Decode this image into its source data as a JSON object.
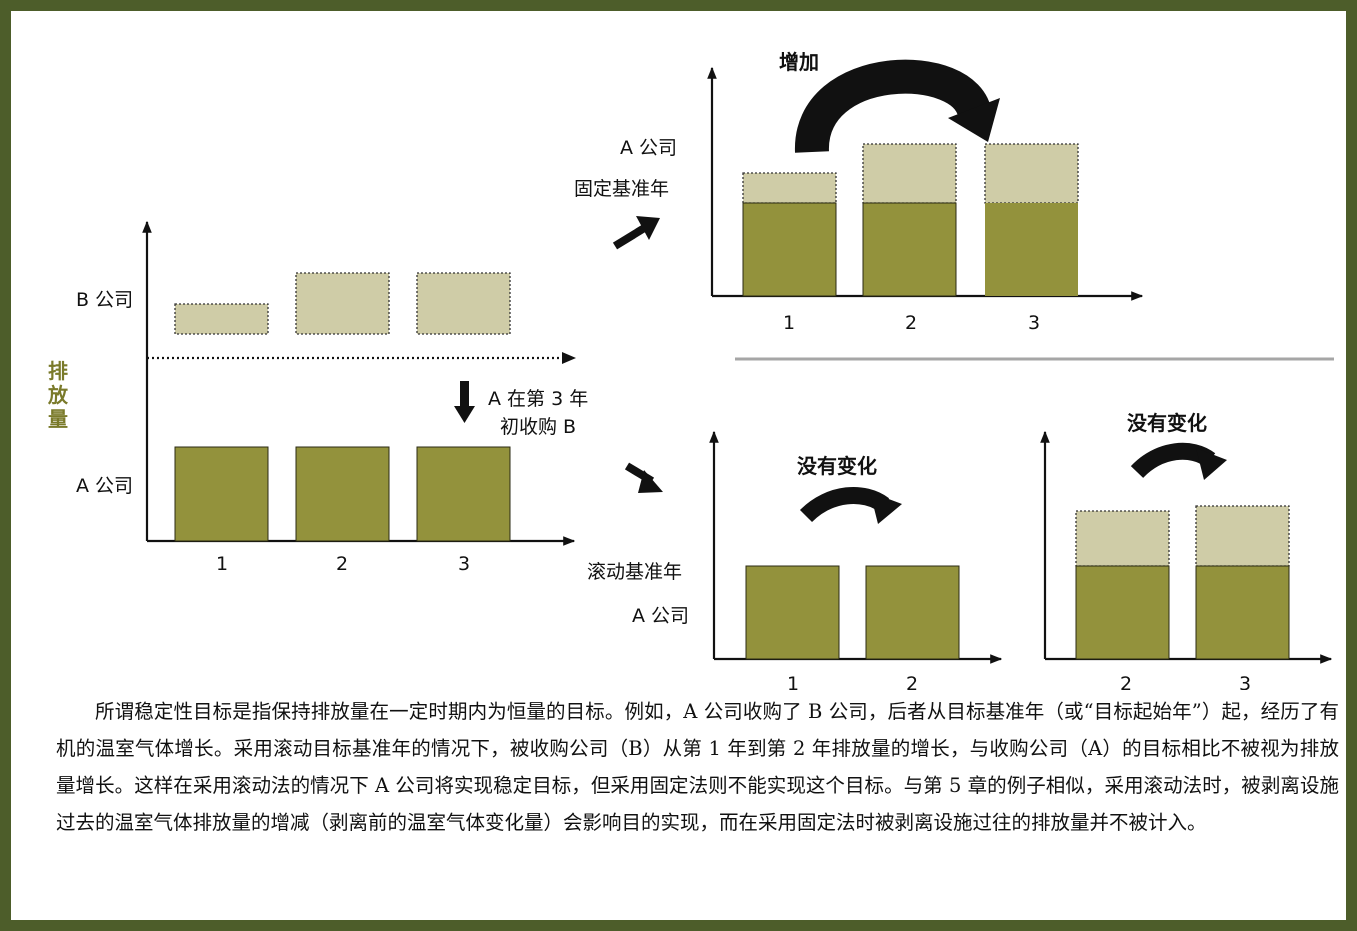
{
  "colors": {
    "border": "#4d5d2a",
    "company_a_bar": "#93923c",
    "company_b_bar": "#cfcca7",
    "axis": "#111111",
    "divider": "#a6a6a6",
    "y_axis_label": "#7a7a2a"
  },
  "left_panel": {
    "company_b_label": "B 公司",
    "company_a_label": "A 公司",
    "y_axis_label": "排放量",
    "acquisition_note_line1": "A 在第 3 年",
    "acquisition_note_line2": "初收购 B",
    "x_ticks": [
      "1",
      "2",
      "3"
    ]
  },
  "fixed_base_panel": {
    "company_label": "A 公司",
    "method_label": "固定基准年",
    "change_label": "增加",
    "x_ticks": [
      "1",
      "2",
      "3"
    ]
  },
  "rolling_base_panel": {
    "method_label": "滚动基准年",
    "company_label": "A 公司",
    "left_change_label": "没有变化",
    "right_change_label": "没有变化",
    "left_x_ticks": [
      "1",
      "2"
    ],
    "right_x_ticks": [
      "2",
      "3"
    ]
  },
  "icons": {
    "curved_arrow": "curved-arrow-icon",
    "down_arrow": "down-arrow-icon",
    "diagonal_arrow": "diagonal-arrow-icon"
  },
  "caption": "所谓稳定性目标是指保持排放量在一定时期内为恒量的目标。例如，A 公司收购了 B 公司，后者从目标基准年（或“目标起始年”）起，经历了有机的温室气体增长。采用滚动目标基准年的情况下，被收购公司（B）从第 1 年到第 2 年排放量的增长，与收购公司（A）的目标相比不被视为排放量增长。这样在采用滚动法的情况下 A 公司将实现稳定目标，但采用固定法则不能实现这个目标。与第 5 章的例子相似，采用滚动法时，被剥离设施过去的温室气体排放量的增减（剥离前的温室气体变化量）会影响目的实现，而在采用固定法时被剥离设施过往的排放量并不被计入。"
}
